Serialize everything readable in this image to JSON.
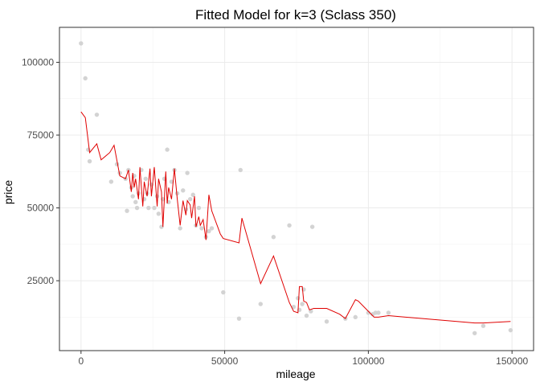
{
  "chart_data": {
    "type": "scatter",
    "title": "Fitted Model for k=3 (Sclass 350)",
    "xlabel": "mileage",
    "ylabel": "price",
    "xlim": [
      -7500,
      157500
    ],
    "ylim": [
      1000,
      112000
    ],
    "x_ticks": [
      0,
      50000,
      100000,
      150000
    ],
    "x_tick_labels": [
      "0",
      "50000",
      "100000",
      "150000"
    ],
    "y_ticks": [
      25000,
      50000,
      75000,
      100000
    ],
    "y_tick_labels": [
      "25000",
      "50000",
      "75000",
      "100000"
    ],
    "grid": true,
    "legend": "none",
    "colors": {
      "points": "#d3d3d3",
      "fit": "#e00000"
    },
    "series": [
      {
        "kind": "points",
        "x": [
          0,
          1500,
          2500,
          3000,
          5500,
          10500,
          12500,
          13500,
          15500,
          16000,
          16500,
          17500,
          18000,
          18500,
          19000,
          19500,
          20000,
          21000,
          22000,
          22500,
          23000,
          23500,
          24500,
          25500,
          26500,
          27000,
          28000,
          28500,
          29000,
          30000,
          30500,
          31500,
          32500,
          33500,
          34500,
          35500,
          36500,
          37000,
          38000,
          39000,
          40000,
          41000,
          42000,
          43500,
          44500,
          45500,
          49500,
          55000,
          55500,
          62500,
          67000,
          72500,
          74000,
          75500,
          76000,
          77000,
          77500,
          78500,
          80000,
          80500,
          85500,
          92000,
          95500,
          100000,
          101500,
          102500,
          103500,
          107000,
          137000,
          140000,
          149500
        ],
        "y": [
          106500,
          94500,
          70000,
          66000,
          82000,
          59000,
          65000,
          62000,
          60000,
          49000,
          63000,
          57000,
          54000,
          61000,
          52000,
          50000,
          55000,
          63000,
          53000,
          60000,
          55000,
          50000,
          58000,
          50000,
          54000,
          48000,
          43500,
          53000,
          60000,
          70000,
          52000,
          59000,
          63000,
          55000,
          43000,
          56000,
          49500,
          62000,
          53000,
          54500,
          44000,
          50000,
          43000,
          40000,
          42000,
          43000,
          21000,
          12000,
          63000,
          17000,
          40000,
          44000,
          16000,
          19000,
          15000,
          17000,
          22000,
          13000,
          14500,
          43500,
          11000,
          12000,
          12500,
          14000,
          13500,
          14000,
          14000,
          14000,
          7000,
          9500,
          8000
        ]
      },
      {
        "kind": "line",
        "x": [
          0,
          1500,
          3000,
          5500,
          7000,
          10000,
          11500,
          13500,
          15500,
          16500,
          17500,
          18000,
          18500,
          19000,
          20000,
          20500,
          21500,
          22000,
          23000,
          24000,
          24500,
          25500,
          26500,
          27000,
          28000,
          28500,
          29500,
          30000,
          30500,
          31500,
          32500,
          33500,
          34500,
          35500,
          36500,
          37000,
          38000,
          38500,
          39500,
          40000,
          41000,
          41500,
          42500,
          43500,
          44500,
          45500,
          48500,
          49500,
          55000,
          56000,
          62500,
          67000,
          72500,
          74000,
          75500,
          76000,
          77000,
          77500,
          78500,
          79500,
          81000,
          85500,
          90000,
          92000,
          95500,
          96500,
          100000,
          102000,
          103500,
          107000,
          137000,
          140000,
          149500
        ],
        "y": [
          83000,
          81000,
          69000,
          72000,
          66500,
          69000,
          71500,
          61000,
          60000,
          63000,
          55500,
          62000,
          57000,
          60000,
          53000,
          64000,
          50500,
          59000,
          54000,
          63500,
          54000,
          64000,
          50500,
          60000,
          55500,
          43500,
          62500,
          51500,
          57000,
          53000,
          63500,
          53000,
          44000,
          52500,
          47500,
          52500,
          51000,
          46500,
          54000,
          43500,
          47000,
          44000,
          46000,
          39000,
          54500,
          49000,
          41000,
          39500,
          38000,
          46500,
          24000,
          33500,
          17500,
          14500,
          14000,
          23000,
          23000,
          18000,
          17500,
          15000,
          15500,
          15500,
          13500,
          12000,
          18500,
          18000,
          14500,
          12500,
          12500,
          13000,
          10500,
          10500,
          11000
        ]
      }
    ]
  }
}
